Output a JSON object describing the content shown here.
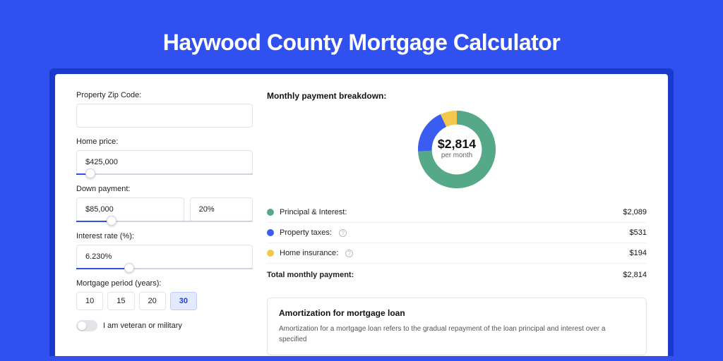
{
  "hero": {
    "title": "Haywood County Mortgage Calculator"
  },
  "form": {
    "zip_label": "Property Zip Code:",
    "zip_value": "",
    "home_price_label": "Home price:",
    "home_price_value": "$425,000",
    "home_price_slider": {
      "fill_pct": 8,
      "thumb_pct": 8
    },
    "dp_label": "Down payment:",
    "dp_amount": "$85,000",
    "dp_pct": "20%",
    "dp_slider": {
      "fill_pct": 20,
      "thumb_pct": 20
    },
    "rate_label": "Interest rate (%):",
    "rate_value": "6.230%",
    "rate_slider": {
      "fill_pct": 30,
      "thumb_pct": 30
    },
    "period_label": "Mortgage period (years):",
    "periods": [
      "10",
      "15",
      "20",
      "30"
    ],
    "period_active": "30",
    "veteran_label": "I am veteran or military"
  },
  "breakdown": {
    "title": "Monthly payment breakdown:",
    "total_value": "$2,814",
    "total_sub": "per month",
    "items": [
      {
        "label": "Principal & Interest:",
        "value": "$2,089",
        "color": "#56a988",
        "info": false
      },
      {
        "label": "Property taxes:",
        "value": "$531",
        "color": "#3a5cf0",
        "info": true
      },
      {
        "label": "Home insurance:",
        "value": "$194",
        "color": "#f2c94c",
        "info": true
      }
    ],
    "total_row": {
      "label": "Total monthly payment:",
      "value": "$2,814"
    },
    "donut": {
      "slices": [
        {
          "color": "#56a988",
          "pct": 74.2
        },
        {
          "color": "#3a5cf0",
          "pct": 18.9
        },
        {
          "color": "#f2c94c",
          "pct": 6.9
        }
      ],
      "size": 118,
      "thickness": 20,
      "bg": "#ffffff"
    }
  },
  "amortization": {
    "title": "Amortization for mortgage loan",
    "text": "Amortization for a mortgage loan refers to the gradual repayment of the loan principal and interest over a specified"
  },
  "colors": {
    "accent": "#3050f0"
  }
}
